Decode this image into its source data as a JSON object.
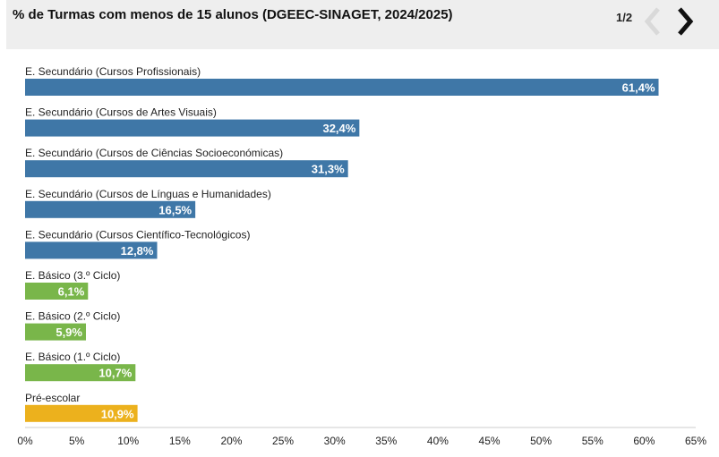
{
  "header": {
    "title": "% de Turmas com menos de 15 alunos (DGEEC-SINAGET, 2024/2025)",
    "pager": "1/2",
    "prev_icon": "chevron-left-icon",
    "next_icon": "chevron-right-icon"
  },
  "colors": {
    "secundario": "#3f77a7",
    "basico": "#79b64a",
    "pre_escolar": "#ecb11d",
    "nav_disabled": "#d9d9d9",
    "nav_active": "#111111"
  },
  "chart_data": {
    "type": "bar",
    "orientation": "horizontal",
    "title": "% de Turmas com menos de 15 alunos (DGEEC-SINAGET, 2024/2025)",
    "categories": [
      "E. Secundário (Cursos Profissionais)",
      "E. Secundário (Cursos de Artes Visuais)",
      "E. Secundário (Cursos de Ciências Socioeconómicas)",
      "E. Secundário (Cursos de Línguas e Humanidades)",
      "E. Secundário (Cursos Científico-Tecnológicos)",
      "E. Básico (3.º Ciclo)",
      "E. Básico (2.º Ciclo)",
      "E. Básico (1.º Ciclo)",
      "Pré-escolar"
    ],
    "values": [
      61.4,
      32.4,
      31.3,
      16.5,
      12.8,
      6.1,
      5.9,
      10.7,
      10.9
    ],
    "value_labels": [
      "61,4%",
      "32,4%",
      "31,3%",
      "16,5%",
      "12,8%",
      "6,1%",
      "5,9%",
      "10,7%",
      "10,9%"
    ],
    "bar_color_keys": [
      "secundario",
      "secundario",
      "secundario",
      "secundario",
      "secundario",
      "basico",
      "basico",
      "basico",
      "pre_escolar"
    ],
    "xlim": [
      0,
      65
    ],
    "x_ticks": [
      0,
      5,
      10,
      15,
      20,
      25,
      30,
      35,
      40,
      45,
      50,
      55,
      60,
      65
    ],
    "x_tick_labels": [
      "0%",
      "5%",
      "10%",
      "15%",
      "20%",
      "25%",
      "30%",
      "35%",
      "40%",
      "45%",
      "50%",
      "55%",
      "60%",
      "65%"
    ],
    "xlabel": "",
    "ylabel": "",
    "grid": false,
    "legend": "none"
  }
}
